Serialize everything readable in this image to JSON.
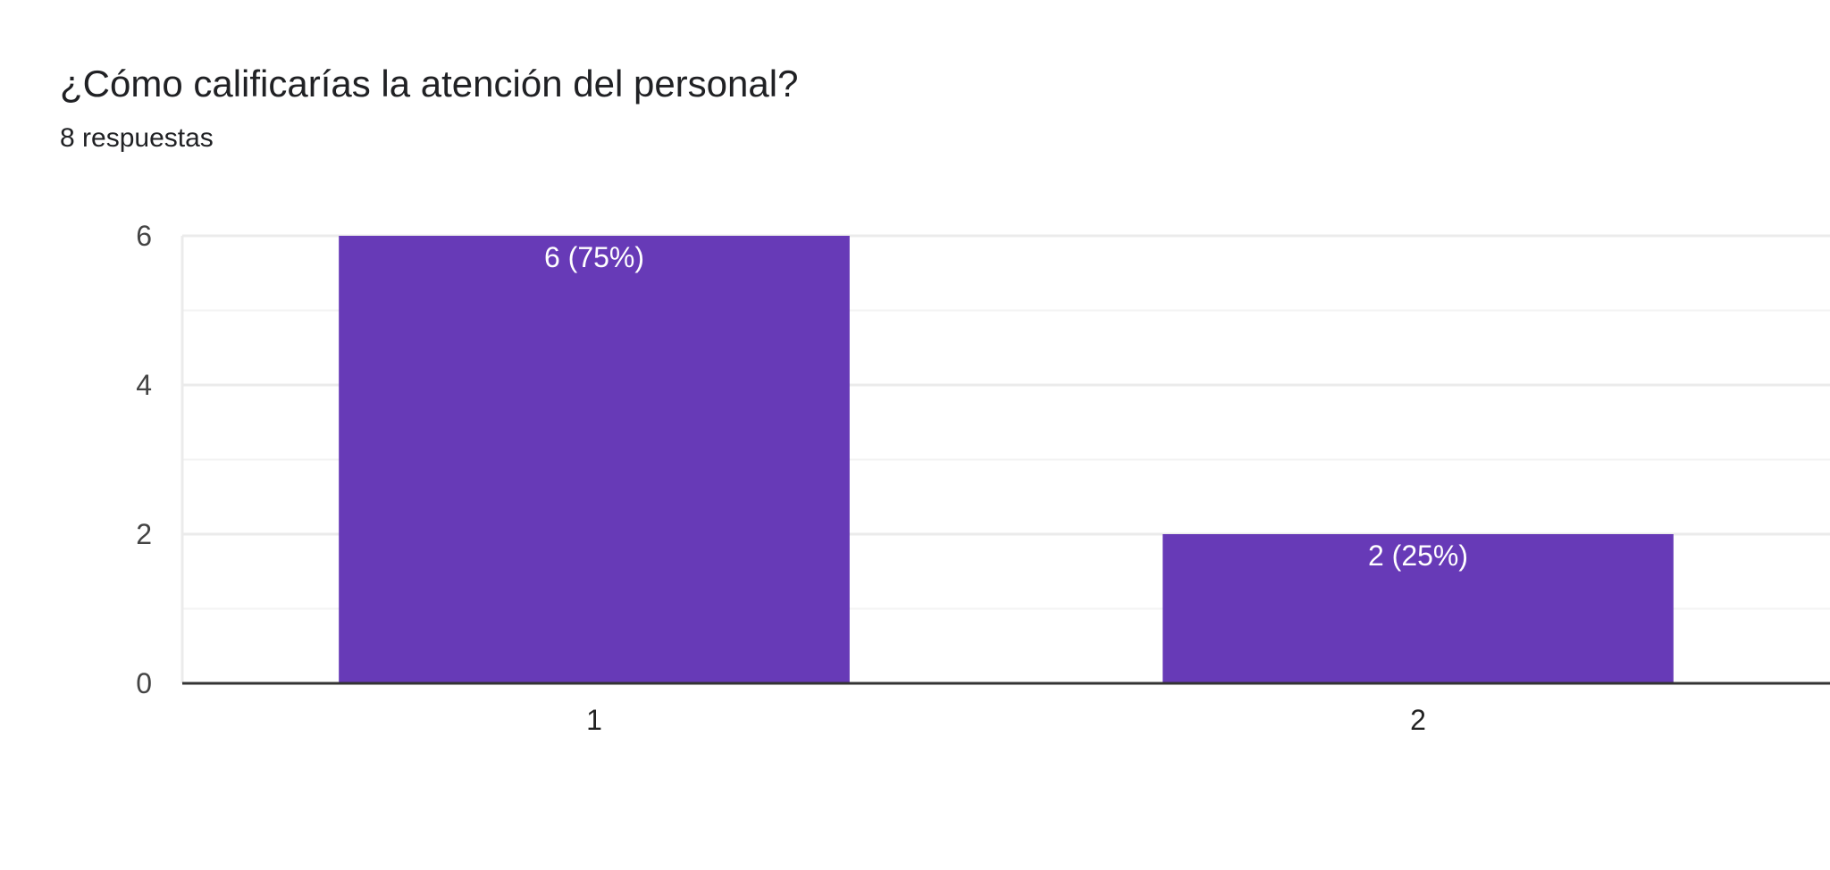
{
  "header": {
    "title": "¿Cómo calificarías la atención del personal?",
    "responses": "8 respuestas"
  },
  "colors": {
    "bar": "#673ab7",
    "grid": "#ebebeb",
    "minor_grid": "#f3f3f3",
    "axis": "#333333"
  },
  "chart_data": {
    "type": "bar",
    "title": "¿Cómo calificarías la atención del personal?",
    "subtitle": "8 respuestas",
    "categories": [
      "1",
      "2"
    ],
    "values": [
      6,
      2
    ],
    "data_labels": [
      "6 (75%)",
      "2 (25%)"
    ],
    "ylim": [
      0,
      6
    ],
    "yticks": [
      0,
      2,
      4,
      6
    ],
    "xlabel": "",
    "ylabel": "",
    "grid": true,
    "legend": "none"
  }
}
